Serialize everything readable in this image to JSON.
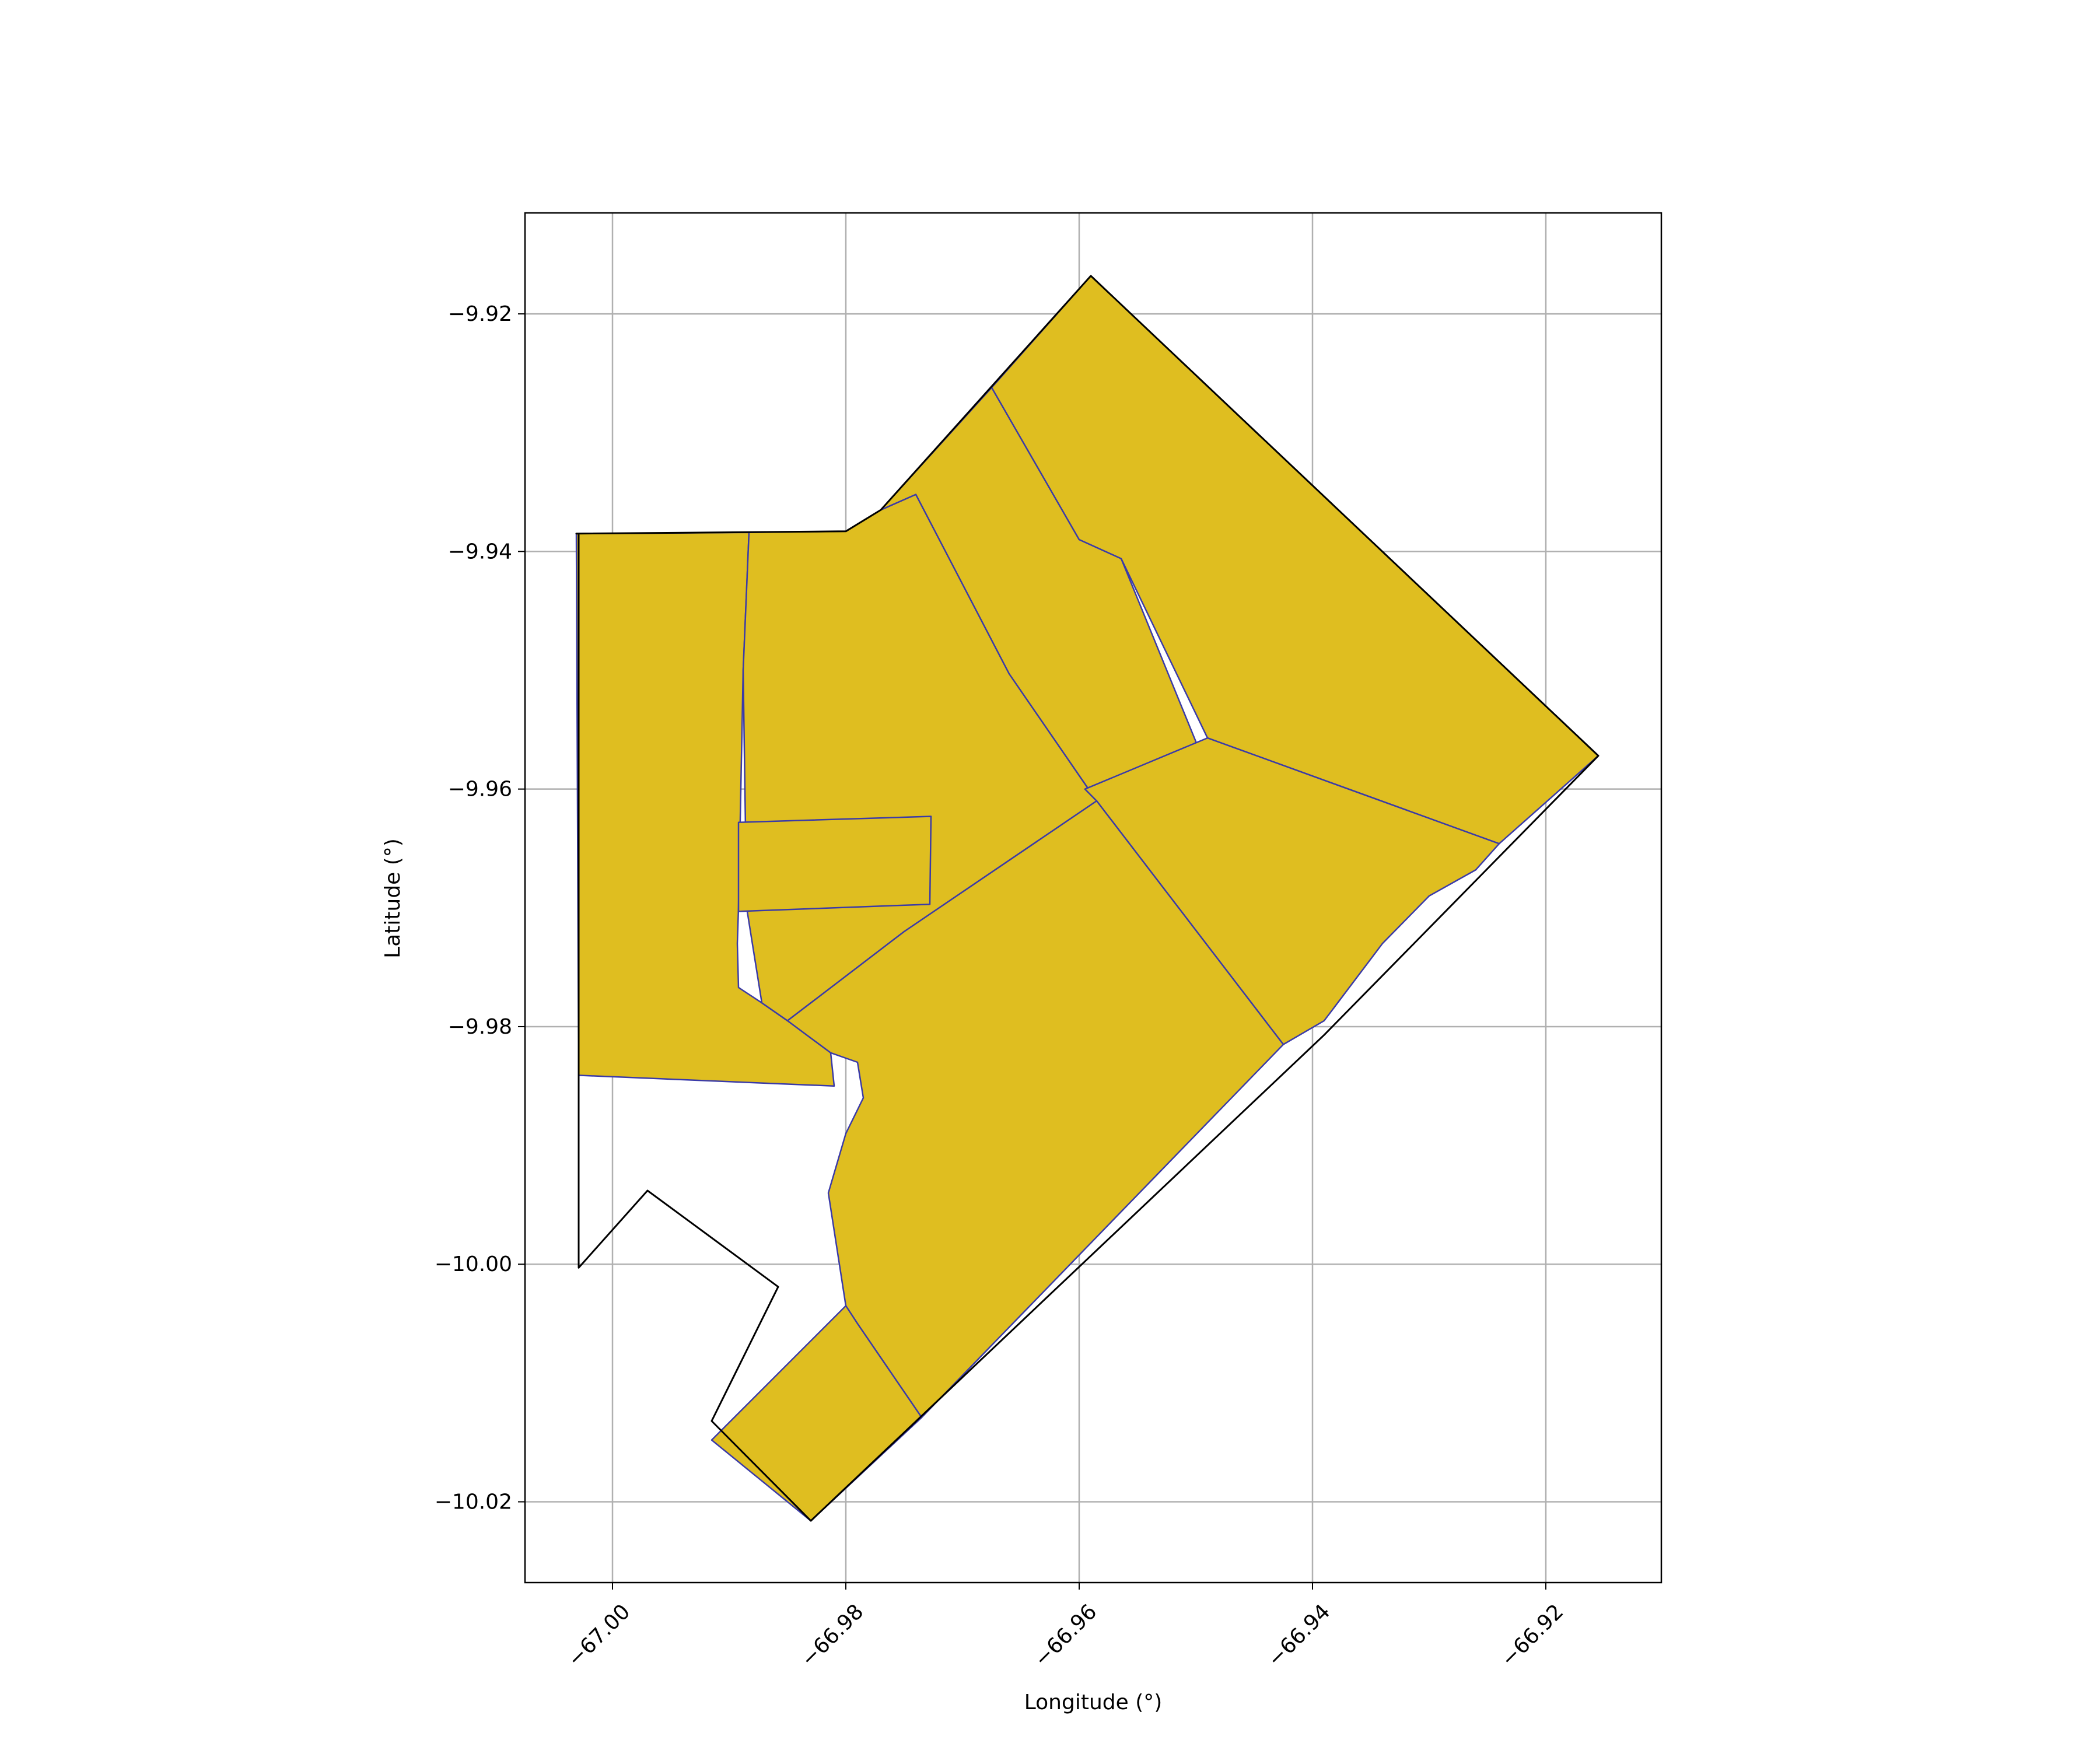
{
  "chart_data": {
    "type": "map",
    "title": "",
    "xlabel": "Longitude (°)",
    "ylabel": "Latitude (°)",
    "xlim": [
      -67.0075,
      -66.9101
    ],
    "ylim": [
      -10.0268,
      -9.9115
    ],
    "grid": true,
    "x_ticks": [
      {
        "value": -67.0,
        "label": "−67.00"
      },
      {
        "value": -66.98,
        "label": "−66.98"
      },
      {
        "value": -66.96,
        "label": "−66.96"
      },
      {
        "value": -66.94,
        "label": "−66.94"
      },
      {
        "value": -66.92,
        "label": "−66.92"
      }
    ],
    "y_ticks": [
      {
        "value": -9.92,
        "label": "−9.92"
      },
      {
        "value": -9.94,
        "label": "−9.94"
      },
      {
        "value": -9.96,
        "label": "−9.96"
      },
      {
        "value": -9.98,
        "label": "−9.98"
      },
      {
        "value": -10.0,
        "label": "−10.00"
      },
      {
        "value": -10.02,
        "label": "−10.02"
      }
    ],
    "colors": {
      "fill": "#dfbe20",
      "district_edge": "#3a3aa8",
      "outer_boundary": "#000000",
      "grid": "#b0b0b0"
    },
    "outer_boundary": [
      [
        -67.0031,
        -9.9385
      ],
      [
        -66.98,
        -9.9383
      ],
      [
        -66.977,
        -9.9365
      ],
      [
        -66.959,
        -9.9168
      ],
      [
        -66.9155,
        -9.9572
      ],
      [
        -66.939,
        -9.9807
      ],
      [
        -66.983,
        -10.0216
      ],
      [
        -66.9915,
        -10.0132
      ],
      [
        -66.9858,
        -10.0019
      ],
      [
        -66.997,
        -9.9938
      ],
      [
        -67.0029,
        -10.0003
      ],
      [
        -67.0029,
        -9.9385
      ]
    ],
    "districts": [
      {
        "coords": [
          [
            -67.0031,
            -9.9385
          ],
          [
            -66.9883,
            -9.9384
          ],
          [
            -66.9888,
            -9.95
          ],
          [
            -66.9892,
            -9.97
          ],
          [
            -66.9893,
            -9.973
          ],
          [
            -66.9892,
            -9.9767
          ],
          [
            -66.9872,
            -9.978
          ],
          [
            -66.985,
            -9.9795
          ],
          [
            -66.9813,
            -9.9822
          ],
          [
            -66.981,
            -9.985
          ],
          [
            -67.0029,
            -9.9841
          ]
        ]
      },
      {
        "coords": [
          [
            -66.9883,
            -9.9384
          ],
          [
            -66.98,
            -9.9383
          ],
          [
            -66.977,
            -9.9365
          ],
          [
            -66.974,
            -9.9352
          ],
          [
            -66.966,
            -9.9503
          ],
          [
            -66.9585,
            -9.961
          ],
          [
            -66.975,
            -9.972
          ],
          [
            -66.985,
            -9.9795
          ],
          [
            -66.9872,
            -9.978
          ],
          [
            -66.9885,
            -9.97
          ],
          [
            -66.9888,
            -9.95
          ]
        ]
      },
      {
        "coords": [
          [
            -66.9892,
            -9.9628
          ],
          [
            -66.9727,
            -9.9623
          ],
          [
            -66.9728,
            -9.9697
          ],
          [
            -66.9892,
            -9.9703
          ]
        ]
      },
      {
        "coords": [
          [
            -66.974,
            -9.9352
          ],
          [
            -66.977,
            -9.9365
          ],
          [
            -66.9675,
            -9.9262
          ],
          [
            -66.96,
            -9.939
          ],
          [
            -66.9564,
            -9.9406
          ],
          [
            -66.95,
            -9.956
          ],
          [
            -66.951,
            -9.96
          ],
          [
            -66.9595,
            -9.96
          ],
          [
            -66.9585,
            -9.961
          ],
          [
            -66.966,
            -9.9503
          ]
        ]
      },
      {
        "coords": [
          [
            -66.9675,
            -9.9262
          ],
          [
            -66.959,
            -9.9168
          ],
          [
            -66.9155,
            -9.9572
          ],
          [
            -66.924,
            -9.9646
          ],
          [
            -66.949,
            -9.9557
          ],
          [
            -66.9564,
            -9.9406
          ],
          [
            -66.96,
            -9.939
          ]
        ]
      },
      {
        "coords": [
          [
            -66.9585,
            -9.961
          ],
          [
            -66.9595,
            -9.96
          ],
          [
            -66.949,
            -9.9557
          ],
          [
            -66.924,
            -9.9646
          ],
          [
            -66.926,
            -9.9668
          ],
          [
            -66.93,
            -9.969
          ],
          [
            -66.934,
            -9.973
          ],
          [
            -66.939,
            -9.9795
          ],
          [
            -66.9425,
            -9.9815
          ]
        ]
      },
      {
        "coords": [
          [
            -66.985,
            -9.9795
          ],
          [
            -66.975,
            -9.972
          ],
          [
            -66.9585,
            -9.961
          ],
          [
            -66.9425,
            -9.9815
          ],
          [
            -66.9735,
            -10.0129
          ],
          [
            -66.979,
            -10.005
          ],
          [
            -66.98,
            -10.0035
          ],
          [
            -66.9815,
            -9.994
          ],
          [
            -66.98,
            -9.989
          ],
          [
            -66.9785,
            -9.986
          ],
          [
            -66.979,
            -9.983
          ],
          [
            -66.9813,
            -9.9822
          ]
        ]
      },
      {
        "coords": [
          [
            -66.98,
            -10.0035
          ],
          [
            -66.979,
            -10.005
          ],
          [
            -66.9735,
            -10.0129
          ],
          [
            -66.983,
            -10.0216
          ],
          [
            -66.9915,
            -10.0148
          ]
        ]
      }
    ]
  }
}
